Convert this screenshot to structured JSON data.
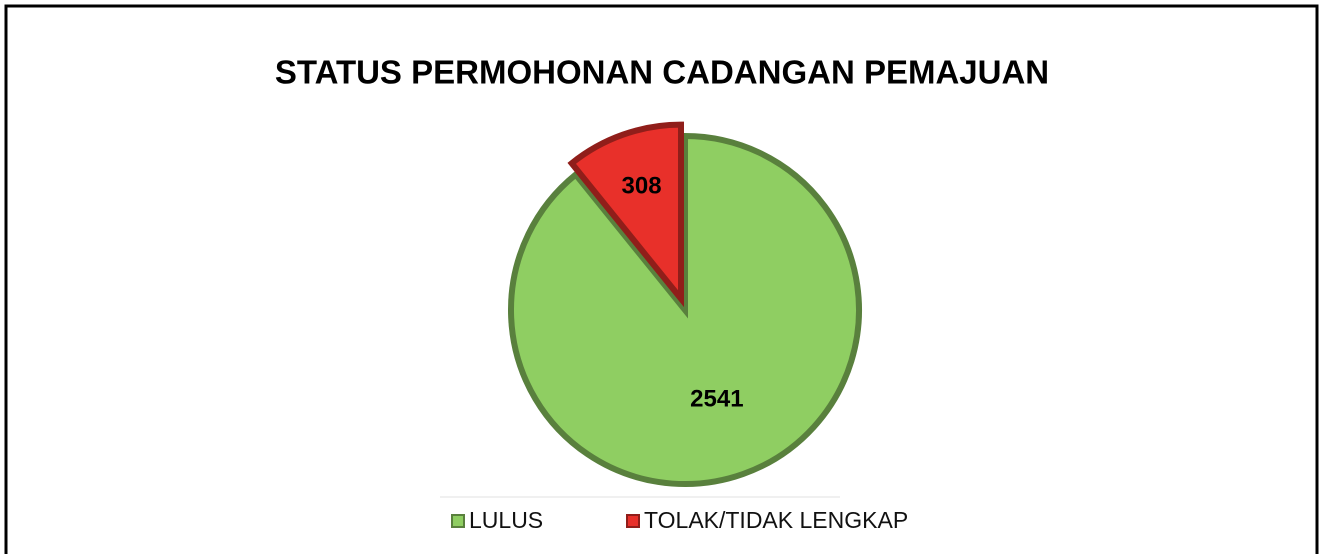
{
  "chart_data": {
    "type": "pie",
    "title": "STATUS PERMOHONAN CADANGAN PEMAJUAN",
    "categories": [
      "LULUS",
      "TOLAK/TIDAK LENGKAP"
    ],
    "values": [
      2541,
      308
    ],
    "colors": [
      "#8fce62",
      "#e8302a"
    ],
    "legend": "bottom"
  }
}
